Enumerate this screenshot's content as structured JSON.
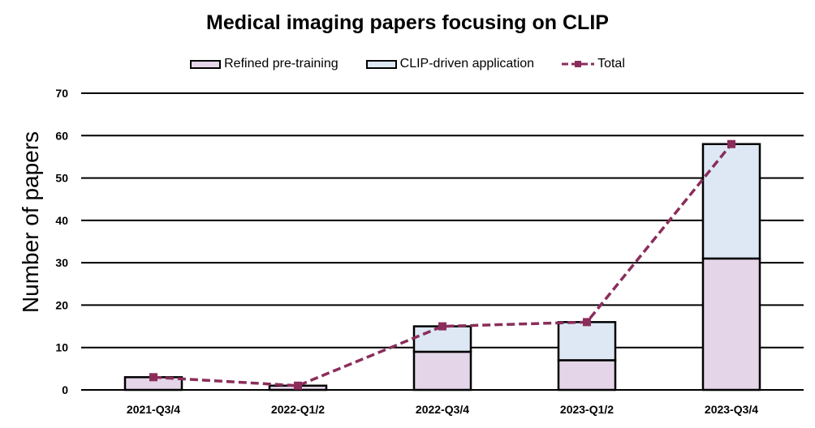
{
  "chart_data": {
    "type": "bar",
    "title": "Medical imaging papers focusing on CLIP",
    "xlabel": "",
    "ylabel": "Number of papers",
    "ylim": [
      0,
      70
    ],
    "yticks": [
      0,
      10,
      20,
      30,
      40,
      50,
      60,
      70
    ],
    "categories": [
      "2021-Q3/4",
      "2022-Q1/2",
      "2022-Q3/4",
      "2023-Q1/2",
      "2023-Q3/4"
    ],
    "stacked": true,
    "series": [
      {
        "name": "Refined pre-training",
        "type": "bar",
        "color": "#e4d5e8",
        "values": [
          3,
          1,
          9,
          7,
          31
        ]
      },
      {
        "name": "CLIP-driven application",
        "type": "bar",
        "color": "#dde8f4",
        "values": [
          0,
          0,
          6,
          9,
          27
        ]
      },
      {
        "name": "Total",
        "type": "line",
        "color": "#8b2d5a",
        "style": "dashed",
        "marker": "square",
        "values": [
          3,
          1,
          15,
          16,
          58
        ]
      }
    ],
    "grid": true,
    "legend_position": "top"
  }
}
